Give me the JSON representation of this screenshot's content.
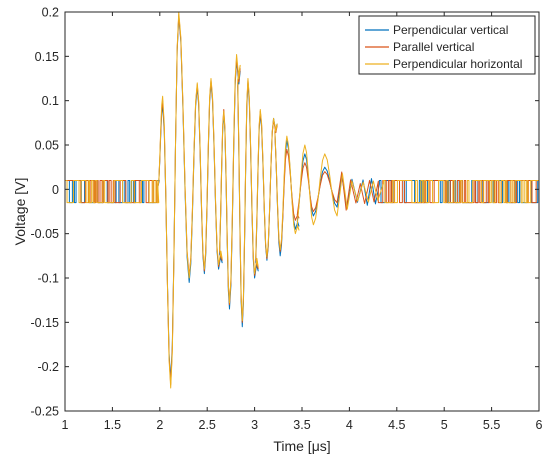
{
  "chart_data": {
    "type": "line",
    "title": "",
    "xlabel": "Time [μs]",
    "ylabel": "Voltage [V]",
    "xlim": [
      1,
      6
    ],
    "ylim": [
      -0.25,
      0.2
    ],
    "xticks": [
      1,
      1.5,
      2,
      2.5,
      3,
      3.5,
      4,
      4.5,
      5,
      5.5,
      6
    ],
    "xtick_labels": [
      "1",
      "1.5",
      "2",
      "2.5",
      "3",
      "3.5",
      "4",
      "4.5",
      "5",
      "5.5",
      "6"
    ],
    "yticks": [
      -0.25,
      -0.2,
      -0.15,
      -0.1,
      -0.05,
      0,
      0.05,
      0.1,
      0.15,
      0.2
    ],
    "ytick_labels": [
      "-0.25",
      "-0.2",
      "-0.15",
      "-0.1",
      "-0.05",
      "0",
      "0.05",
      "0.1",
      "0.15",
      "0.2"
    ],
    "grid": false,
    "legend_position": "top-right",
    "noise_floor": [
      -0.015,
      0.01
    ],
    "signal_onset": 1.98,
    "oscillation_period": 0.135,
    "series": [
      {
        "name": "Perpendicular vertical",
        "color": "#0072BD",
        "peaks": [
          {
            "x": 2.03,
            "y": 0.095
          },
          {
            "x": 2.115,
            "y": -0.215
          },
          {
            "x": 2.2,
            "y": 0.195
          },
          {
            "x": 2.31,
            "y": -0.105
          },
          {
            "x": 2.395,
            "y": 0.115
          },
          {
            "x": 2.47,
            "y": -0.095
          },
          {
            "x": 2.54,
            "y": 0.12
          },
          {
            "x": 2.62,
            "y": -0.09
          },
          {
            "x": 2.675,
            "y": 0.085
          },
          {
            "x": 2.735,
            "y": -0.135
          },
          {
            "x": 2.81,
            "y": 0.145
          },
          {
            "x": 2.87,
            "y": -0.155
          },
          {
            "x": 2.93,
            "y": 0.12
          },
          {
            "x": 3.0,
            "y": -0.1
          },
          {
            "x": 3.06,
            "y": 0.085
          },
          {
            "x": 3.13,
            "y": -0.08
          },
          {
            "x": 3.2,
            "y": 0.08
          },
          {
            "x": 3.27,
            "y": -0.075
          },
          {
            "x": 3.34,
            "y": 0.055
          },
          {
            "x": 3.43,
            "y": -0.045
          },
          {
            "x": 3.53,
            "y": 0.04
          },
          {
            "x": 3.62,
            "y": -0.03
          },
          {
            "x": 3.74,
            "y": 0.025
          },
          {
            "x": 3.87,
            "y": -0.02
          }
        ]
      },
      {
        "name": "Parallel vertical",
        "color": "#D95319",
        "peaks": [
          {
            "x": 2.03,
            "y": 0.1
          },
          {
            "x": 2.115,
            "y": -0.22
          },
          {
            "x": 2.2,
            "y": 0.197
          },
          {
            "x": 2.31,
            "y": -0.098
          },
          {
            "x": 2.395,
            "y": 0.118
          },
          {
            "x": 2.47,
            "y": -0.092
          },
          {
            "x": 2.54,
            "y": 0.123
          },
          {
            "x": 2.62,
            "y": -0.087
          },
          {
            "x": 2.675,
            "y": 0.09
          },
          {
            "x": 2.735,
            "y": -0.13
          },
          {
            "x": 2.81,
            "y": 0.148
          },
          {
            "x": 2.87,
            "y": -0.15
          },
          {
            "x": 2.93,
            "y": 0.123
          },
          {
            "x": 3.0,
            "y": -0.097
          },
          {
            "x": 3.06,
            "y": 0.088
          },
          {
            "x": 3.13,
            "y": -0.078
          },
          {
            "x": 3.2,
            "y": 0.078
          },
          {
            "x": 3.27,
            "y": -0.07
          },
          {
            "x": 3.34,
            "y": 0.045
          },
          {
            "x": 3.43,
            "y": -0.035
          },
          {
            "x": 3.53,
            "y": 0.03
          },
          {
            "x": 3.62,
            "y": -0.025
          },
          {
            "x": 3.74,
            "y": 0.02
          },
          {
            "x": 3.87,
            "y": -0.015
          }
        ]
      },
      {
        "name": "Perpendicular horizontal",
        "color": "#EDB120",
        "peaks": [
          {
            "x": 2.03,
            "y": 0.105
          },
          {
            "x": 2.115,
            "y": -0.224
          },
          {
            "x": 2.2,
            "y": 0.2
          },
          {
            "x": 2.31,
            "y": -0.1
          },
          {
            "x": 2.395,
            "y": 0.12
          },
          {
            "x": 2.47,
            "y": -0.09
          },
          {
            "x": 2.54,
            "y": 0.125
          },
          {
            "x": 2.62,
            "y": -0.085
          },
          {
            "x": 2.675,
            "y": 0.088
          },
          {
            "x": 2.735,
            "y": -0.128
          },
          {
            "x": 2.81,
            "y": 0.152
          },
          {
            "x": 2.87,
            "y": -0.148
          },
          {
            "x": 2.93,
            "y": 0.125
          },
          {
            "x": 3.0,
            "y": -0.095
          },
          {
            "x": 3.06,
            "y": 0.09
          },
          {
            "x": 3.13,
            "y": -0.076
          },
          {
            "x": 3.2,
            "y": 0.08
          },
          {
            "x": 3.27,
            "y": -0.068
          },
          {
            "x": 3.34,
            "y": 0.06
          },
          {
            "x": 3.43,
            "y": -0.05
          },
          {
            "x": 3.53,
            "y": 0.05
          },
          {
            "x": 3.62,
            "y": -0.04
          },
          {
            "x": 3.74,
            "y": 0.04
          },
          {
            "x": 3.87,
            "y": -0.03
          }
        ]
      }
    ]
  }
}
